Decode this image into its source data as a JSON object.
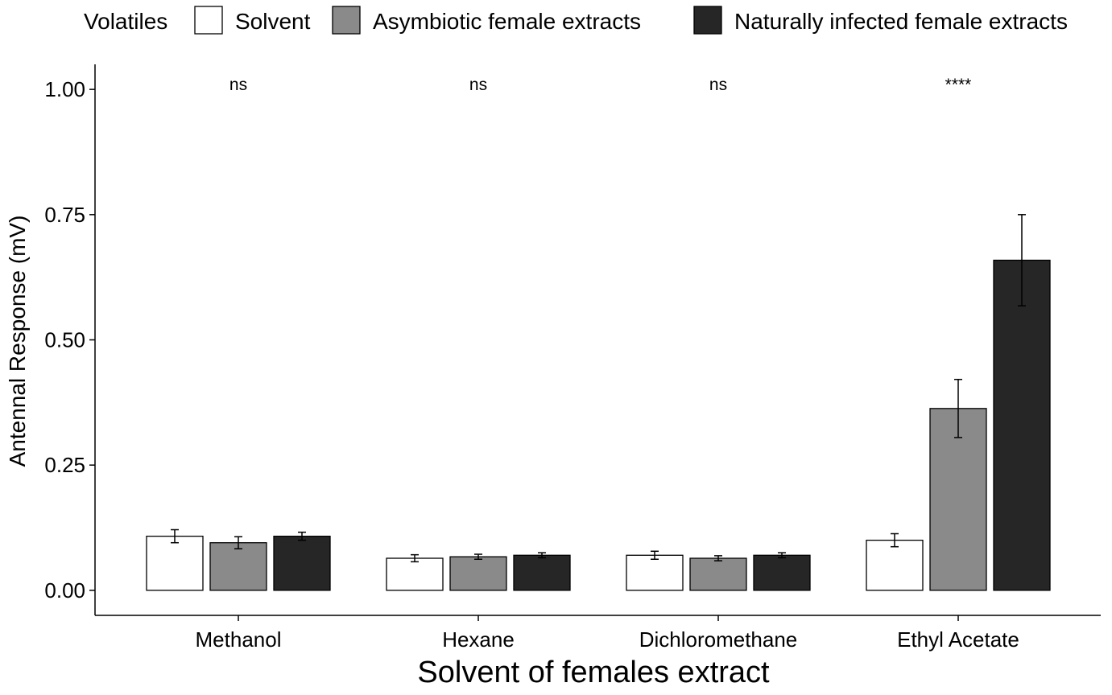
{
  "chart_data": {
    "type": "bar",
    "title": "",
    "xlabel": "Solvent of females extract",
    "ylabel": "Antennal Response (mV)",
    "ylim": [
      -0.05,
      1.05
    ],
    "yticks": [
      "0.00",
      "0.25",
      "0.50",
      "0.75",
      "1.00"
    ],
    "grid": false,
    "legend_position": "top",
    "legend_title": "Volatiles",
    "categories": [
      "Methanol",
      "Hexane",
      "Dichloromethane",
      "Ethyl Acetate"
    ],
    "series": [
      {
        "name": "Solvent",
        "color": "#ffffff",
        "values": [
          0.108,
          0.064,
          0.07,
          0.1
        ],
        "errors": [
          0.013,
          0.007,
          0.008,
          0.013
        ]
      },
      {
        "name": "Asymbiotic female extracts",
        "color": "#8a8a8a",
        "values": [
          0.095,
          0.067,
          0.064,
          0.363
        ],
        "errors": [
          0.012,
          0.005,
          0.005,
          0.058
        ]
      },
      {
        "name": "Naturally infected female extracts",
        "color": "#262626",
        "values": [
          0.108,
          0.07,
          0.07,
          0.659
        ],
        "errors": [
          0.008,
          0.005,
          0.005,
          0.091
        ]
      }
    ],
    "annotations": [
      "ns",
      "ns",
      "ns",
      "****"
    ]
  }
}
